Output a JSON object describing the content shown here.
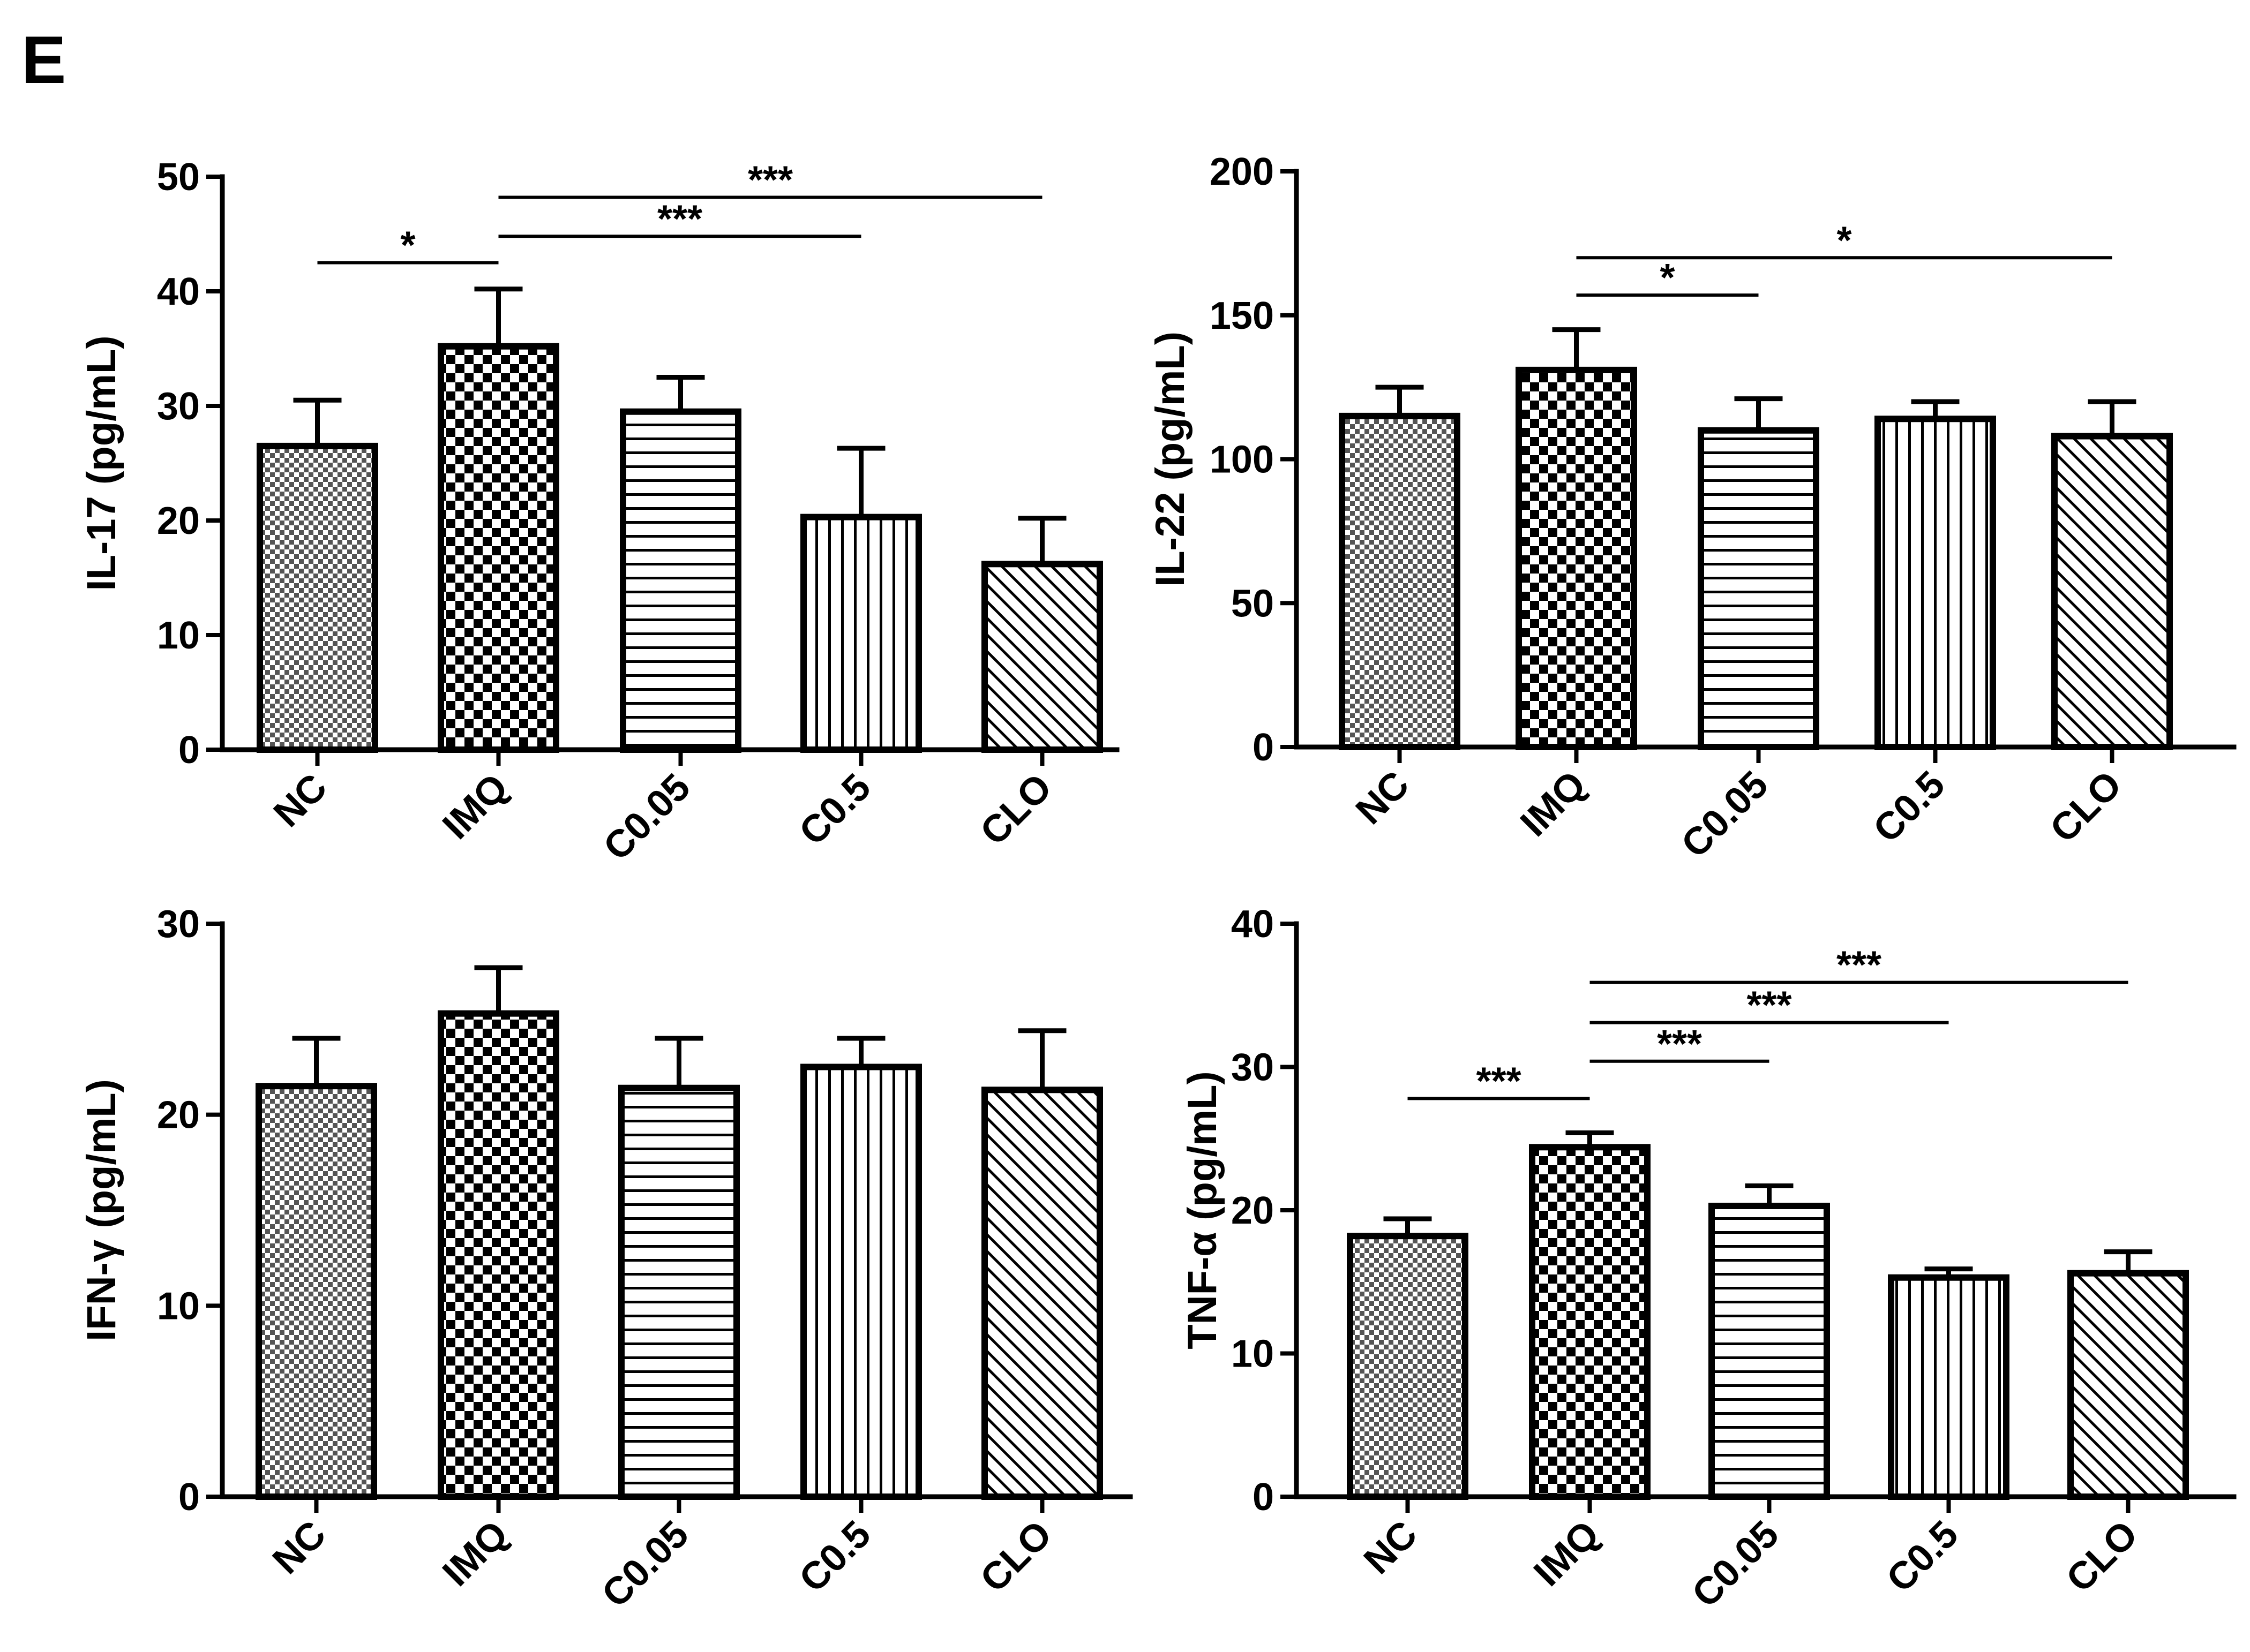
{
  "panel_label": "E",
  "chart_data": [
    {
      "type": "bar",
      "ylabel": "IL-17 (pg/mL)",
      "ylim": [
        0,
        50
      ],
      "yticks": [
        0,
        10,
        20,
        30,
        40,
        50
      ],
      "categories": [
        "NC",
        "IMQ",
        "C0.05",
        "C0.5",
        "CLO"
      ],
      "values": [
        26.5,
        35.2,
        29.5,
        20.3,
        16.2
      ],
      "errors": [
        4.0,
        5.0,
        3.0,
        6.0,
        4.0
      ],
      "patterns": [
        "checker-fine",
        "checker",
        "hlines",
        "vlines",
        "diag"
      ],
      "significance": [
        {
          "from": "NC",
          "to": "IMQ",
          "label": "*",
          "level": 42.5
        },
        {
          "from": "IMQ",
          "to": "C0.5",
          "label": "***",
          "level": 44.8
        },
        {
          "from": "IMQ",
          "to": "CLO",
          "label": "***",
          "level": 48.2
        }
      ]
    },
    {
      "type": "bar",
      "ylabel": "IL-22 (pg/mL)",
      "ylim": [
        0,
        200
      ],
      "yticks": [
        0,
        50,
        100,
        150,
        200
      ],
      "categories": [
        "NC",
        "IMQ",
        "C0.05",
        "C0.5",
        "CLO"
      ],
      "values": [
        115,
        131,
        110,
        114,
        108
      ],
      "errors": [
        10,
        14,
        11,
        6,
        12
      ],
      "patterns": [
        "checker-fine",
        "checker",
        "hlines",
        "vlines",
        "diag"
      ],
      "significance": [
        {
          "from": "IMQ",
          "to": "C0.05",
          "label": "*",
          "level": 157
        },
        {
          "from": "IMQ",
          "to": "CLO",
          "label": "*",
          "level": 170
        }
      ]
    },
    {
      "type": "bar",
      "ylabel": "IFN-γ (pg/mL)",
      "ylim": [
        0,
        30
      ],
      "yticks": [
        0,
        10,
        20,
        30
      ],
      "categories": [
        "NC",
        "IMQ",
        "C0.05",
        "C0.5",
        "CLO"
      ],
      "values": [
        21.5,
        25.3,
        21.4,
        22.5,
        21.3
      ],
      "errors": [
        2.5,
        2.4,
        2.6,
        1.5,
        3.1
      ],
      "patterns": [
        "checker-fine",
        "checker",
        "hlines",
        "vlines",
        "diag"
      ],
      "significance": []
    },
    {
      "type": "bar",
      "ylabel": "TNF-α (pg/mL)",
      "ylim": [
        0,
        40
      ],
      "yticks": [
        0,
        10,
        20,
        30,
        40
      ],
      "categories": [
        "NC",
        "IMQ",
        "C0.05",
        "C0.5",
        "CLO"
      ],
      "values": [
        18.2,
        24.4,
        20.3,
        15.3,
        15.6
      ],
      "errors": [
        1.2,
        1.0,
        1.4,
        0.6,
        1.5
      ],
      "patterns": [
        "checker-fine",
        "checker",
        "hlines",
        "vlines",
        "diag"
      ],
      "significance": [
        {
          "from": "NC",
          "to": "IMQ",
          "label": "***",
          "level": 27.8
        },
        {
          "from": "IMQ",
          "to": "C0.05",
          "label": "***",
          "level": 30.4
        },
        {
          "from": "IMQ",
          "to": "C0.5",
          "label": "***",
          "level": 33.1
        },
        {
          "from": "IMQ",
          "to": "CLO",
          "label": "***",
          "level": 35.9
        }
      ]
    }
  ]
}
